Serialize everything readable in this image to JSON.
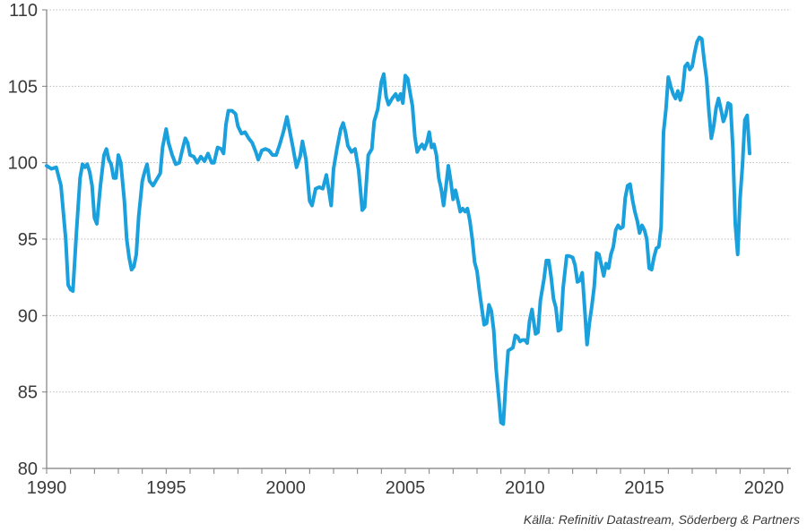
{
  "chart_data": {
    "type": "line",
    "title": "",
    "xlabel": "",
    "ylabel": "",
    "xlim": [
      1990,
      2021.2
    ],
    "ylim": [
      80,
      110
    ],
    "x_ticks": [
      1990,
      1995,
      2000,
      2005,
      2010,
      2015,
      2020
    ],
    "x_tick_labels": [
      "1990",
      "1995",
      "2000",
      "2005",
      "2010",
      "2015",
      "2020"
    ],
    "y_ticks": [
      80,
      85,
      90,
      95,
      100,
      105,
      110
    ],
    "y_tick_labels": [
      "80",
      "85",
      "90",
      "95",
      "100",
      "105",
      "110"
    ],
    "grid": "horizontal dotted",
    "legend": "none",
    "line_color": "#1aa0dc",
    "series": [
      {
        "points": [
          [
            1990.0,
            99.8
          ],
          [
            1990.2,
            99.6
          ],
          [
            1990.4,
            99.7
          ],
          [
            1990.6,
            98.5
          ],
          [
            1990.8,
            95.0
          ],
          [
            1990.9,
            92.0
          ],
          [
            1991.0,
            91.7
          ],
          [
            1991.1,
            91.6
          ],
          [
            1991.25,
            95.5
          ],
          [
            1991.4,
            99.0
          ],
          [
            1991.5,
            99.9
          ],
          [
            1991.6,
            99.7
          ],
          [
            1991.7,
            99.9
          ],
          [
            1991.8,
            99.4
          ],
          [
            1991.9,
            98.5
          ],
          [
            1992.0,
            96.4
          ],
          [
            1992.1,
            96.0
          ],
          [
            1992.25,
            98.5
          ],
          [
            1992.4,
            100.5
          ],
          [
            1992.5,
            100.9
          ],
          [
            1992.6,
            100.2
          ],
          [
            1992.7,
            99.9
          ],
          [
            1992.8,
            99.0
          ],
          [
            1992.9,
            99.0
          ],
          [
            1993.0,
            100.5
          ],
          [
            1993.1,
            100.0
          ],
          [
            1993.25,
            97.5
          ],
          [
            1993.35,
            95.0
          ],
          [
            1993.45,
            93.8
          ],
          [
            1993.55,
            93.0
          ],
          [
            1993.65,
            93.2
          ],
          [
            1993.75,
            94.0
          ],
          [
            1993.85,
            96.5
          ],
          [
            1994.0,
            98.8
          ],
          [
            1994.1,
            99.4
          ],
          [
            1994.2,
            99.9
          ],
          [
            1994.3,
            98.8
          ],
          [
            1994.45,
            98.5
          ],
          [
            1994.6,
            98.9
          ],
          [
            1994.75,
            99.3
          ],
          [
            1994.85,
            101.0
          ],
          [
            1995.0,
            102.2
          ],
          [
            1995.1,
            101.3
          ],
          [
            1995.25,
            100.5
          ],
          [
            1995.4,
            99.9
          ],
          [
            1995.55,
            100.0
          ],
          [
            1995.7,
            101.0
          ],
          [
            1995.8,
            101.6
          ],
          [
            1995.9,
            101.3
          ],
          [
            1996.0,
            100.5
          ],
          [
            1996.15,
            100.4
          ],
          [
            1996.3,
            100.0
          ],
          [
            1996.45,
            100.4
          ],
          [
            1996.6,
            100.1
          ],
          [
            1996.75,
            100.6
          ],
          [
            1996.9,
            100.0
          ],
          [
            1997.0,
            100.0
          ],
          [
            1997.15,
            101.0
          ],
          [
            1997.3,
            100.9
          ],
          [
            1997.4,
            100.6
          ],
          [
            1997.5,
            102.5
          ],
          [
            1997.6,
            103.4
          ],
          [
            1997.75,
            103.4
          ],
          [
            1997.9,
            103.2
          ],
          [
            1998.0,
            102.4
          ],
          [
            1998.15,
            101.9
          ],
          [
            1998.3,
            102.0
          ],
          [
            1998.45,
            101.6
          ],
          [
            1998.6,
            101.3
          ],
          [
            1998.75,
            100.7
          ],
          [
            1998.85,
            100.2
          ],
          [
            1999.0,
            100.8
          ],
          [
            1999.15,
            100.9
          ],
          [
            1999.3,
            100.8
          ],
          [
            1999.45,
            100.5
          ],
          [
            1999.6,
            100.5
          ],
          [
            1999.75,
            101.2
          ],
          [
            1999.9,
            102.0
          ],
          [
            2000.05,
            103.0
          ],
          [
            2000.15,
            102.2
          ],
          [
            2000.3,
            101.0
          ],
          [
            2000.45,
            99.7
          ],
          [
            2000.6,
            100.4
          ],
          [
            2000.7,
            101.4
          ],
          [
            2000.85,
            100.2
          ],
          [
            2001.0,
            97.5
          ],
          [
            2001.1,
            97.2
          ],
          [
            2001.25,
            98.3
          ],
          [
            2001.4,
            98.4
          ],
          [
            2001.55,
            98.3
          ],
          [
            2001.7,
            99.2
          ],
          [
            2001.8,
            98.2
          ],
          [
            2001.9,
            97.2
          ],
          [
            2002.0,
            99.6
          ],
          [
            2002.15,
            101.0
          ],
          [
            2002.3,
            102.2
          ],
          [
            2002.4,
            102.6
          ],
          [
            2002.5,
            102.0
          ],
          [
            2002.6,
            101.1
          ],
          [
            2002.75,
            100.7
          ],
          [
            2002.9,
            100.9
          ],
          [
            2003.05,
            99.5
          ],
          [
            2003.2,
            96.9
          ],
          [
            2003.3,
            97.1
          ],
          [
            2003.45,
            100.5
          ],
          [
            2003.6,
            100.9
          ],
          [
            2003.7,
            102.7
          ],
          [
            2003.85,
            103.5
          ],
          [
            2004.0,
            105.3
          ],
          [
            2004.1,
            105.8
          ],
          [
            2004.2,
            104.3
          ],
          [
            2004.3,
            103.8
          ],
          [
            2004.45,
            104.2
          ],
          [
            2004.6,
            104.5
          ],
          [
            2004.7,
            104.1
          ],
          [
            2004.8,
            104.5
          ],
          [
            2004.9,
            103.9
          ],
          [
            2005.0,
            105.7
          ],
          [
            2005.1,
            105.5
          ],
          [
            2005.2,
            104.6
          ],
          [
            2005.3,
            103.7
          ],
          [
            2005.4,
            101.7
          ],
          [
            2005.5,
            100.7
          ],
          [
            2005.6,
            101.0
          ],
          [
            2005.7,
            101.2
          ],
          [
            2005.8,
            100.9
          ],
          [
            2005.9,
            101.3
          ],
          [
            2006.0,
            102.0
          ],
          [
            2006.1,
            101.0
          ],
          [
            2006.2,
            101.2
          ],
          [
            2006.3,
            100.5
          ],
          [
            2006.4,
            99.0
          ],
          [
            2006.5,
            98.3
          ],
          [
            2006.6,
            97.2
          ],
          [
            2006.7,
            98.4
          ],
          [
            2006.8,
            99.8
          ],
          [
            2006.9,
            98.8
          ],
          [
            2007.0,
            97.6
          ],
          [
            2007.1,
            98.2
          ],
          [
            2007.2,
            97.5
          ],
          [
            2007.3,
            96.8
          ],
          [
            2007.4,
            97.0
          ],
          [
            2007.5,
            96.8
          ],
          [
            2007.6,
            97.0
          ],
          [
            2007.7,
            96.2
          ],
          [
            2007.8,
            95.0
          ],
          [
            2007.9,
            93.5
          ],
          [
            2008.0,
            92.9
          ],
          [
            2008.1,
            91.6
          ],
          [
            2008.2,
            90.5
          ],
          [
            2008.3,
            89.4
          ],
          [
            2008.4,
            89.5
          ],
          [
            2008.5,
            90.7
          ],
          [
            2008.6,
            90.3
          ],
          [
            2008.7,
            89.0
          ],
          [
            2008.8,
            86.5
          ],
          [
            2008.9,
            84.8
          ],
          [
            2009.0,
            83.0
          ],
          [
            2009.1,
            82.9
          ],
          [
            2009.2,
            85.5
          ],
          [
            2009.3,
            87.7
          ],
          [
            2009.4,
            87.8
          ],
          [
            2009.5,
            87.9
          ],
          [
            2009.6,
            88.7
          ],
          [
            2009.7,
            88.6
          ],
          [
            2009.8,
            88.3
          ],
          [
            2009.9,
            88.4
          ],
          [
            2010.0,
            88.4
          ],
          [
            2010.1,
            88.2
          ],
          [
            2010.2,
            89.7
          ],
          [
            2010.3,
            90.4
          ],
          [
            2010.35,
            89.8
          ],
          [
            2010.45,
            88.8
          ],
          [
            2010.55,
            88.9
          ],
          [
            2010.65,
            91.0
          ],
          [
            2010.8,
            92.4
          ],
          [
            2010.9,
            93.6
          ],
          [
            2011.0,
            93.6
          ],
          [
            2011.1,
            92.5
          ],
          [
            2011.2,
            91.1
          ],
          [
            2011.3,
            90.5
          ],
          [
            2011.4,
            89.0
          ],
          [
            2011.5,
            89.1
          ],
          [
            2011.6,
            91.8
          ],
          [
            2011.75,
            93.9
          ],
          [
            2011.85,
            93.9
          ],
          [
            2012.0,
            93.8
          ],
          [
            2012.1,
            93.3
          ],
          [
            2012.2,
            92.2
          ],
          [
            2012.3,
            92.3
          ],
          [
            2012.4,
            92.8
          ],
          [
            2012.5,
            90.5
          ],
          [
            2012.6,
            88.1
          ],
          [
            2012.7,
            89.5
          ],
          [
            2012.8,
            90.6
          ],
          [
            2012.9,
            91.9
          ],
          [
            2013.0,
            94.1
          ],
          [
            2013.1,
            94.0
          ],
          [
            2013.2,
            93.3
          ],
          [
            2013.3,
            92.6
          ],
          [
            2013.4,
            93.4
          ],
          [
            2013.5,
            93.1
          ],
          [
            2013.6,
            94.0
          ],
          [
            2013.7,
            94.5
          ],
          [
            2013.8,
            95.6
          ],
          [
            2013.9,
            95.9
          ],
          [
            2014.0,
            95.7
          ],
          [
            2014.1,
            95.8
          ],
          [
            2014.2,
            97.7
          ],
          [
            2014.3,
            98.5
          ],
          [
            2014.4,
            98.6
          ],
          [
            2014.5,
            97.6
          ],
          [
            2014.6,
            96.8
          ],
          [
            2014.7,
            96.2
          ],
          [
            2014.8,
            95.4
          ],
          [
            2014.9,
            95.9
          ],
          [
            2015.0,
            95.6
          ],
          [
            2015.1,
            95.0
          ],
          [
            2015.2,
            93.1
          ],
          [
            2015.3,
            93.0
          ],
          [
            2015.4,
            93.8
          ],
          [
            2015.5,
            94.4
          ],
          [
            2015.6,
            94.5
          ],
          [
            2015.7,
            95.8
          ],
          [
            2015.8,
            102.0
          ],
          [
            2015.9,
            103.5
          ],
          [
            2016.0,
            105.6
          ],
          [
            2016.1,
            105.0
          ],
          [
            2016.2,
            104.5
          ],
          [
            2016.3,
            104.2
          ],
          [
            2016.4,
            104.7
          ],
          [
            2016.5,
            104.1
          ],
          [
            2016.6,
            104.7
          ],
          [
            2016.7,
            106.3
          ],
          [
            2016.8,
            106.5
          ],
          [
            2016.9,
            106.1
          ],
          [
            2017.0,
            106.3
          ],
          [
            2017.1,
            107.2
          ],
          [
            2017.2,
            107.9
          ],
          [
            2017.3,
            108.2
          ],
          [
            2017.4,
            108.1
          ],
          [
            2017.5,
            106.7
          ],
          [
            2017.6,
            105.5
          ],
          [
            2017.7,
            103.3
          ],
          [
            2017.8,
            101.6
          ],
          [
            2017.9,
            102.4
          ],
          [
            2018.0,
            103.6
          ],
          [
            2018.1,
            104.2
          ],
          [
            2018.2,
            103.5
          ],
          [
            2018.3,
            102.7
          ],
          [
            2018.4,
            103.1
          ],
          [
            2018.5,
            103.9
          ],
          [
            2018.6,
            103.8
          ],
          [
            2018.7,
            101.0
          ],
          [
            2018.8,
            96.0
          ],
          [
            2018.9,
            94.0
          ],
          [
            2019.0,
            97.6
          ],
          [
            2019.1,
            99.8
          ],
          [
            2019.2,
            102.8
          ],
          [
            2019.3,
            103.1
          ],
          [
            2019.4,
            100.6
          ]
        ]
      }
    ]
  },
  "source": "Källa: Refinitiv Datastream, Söderberg & Partners"
}
